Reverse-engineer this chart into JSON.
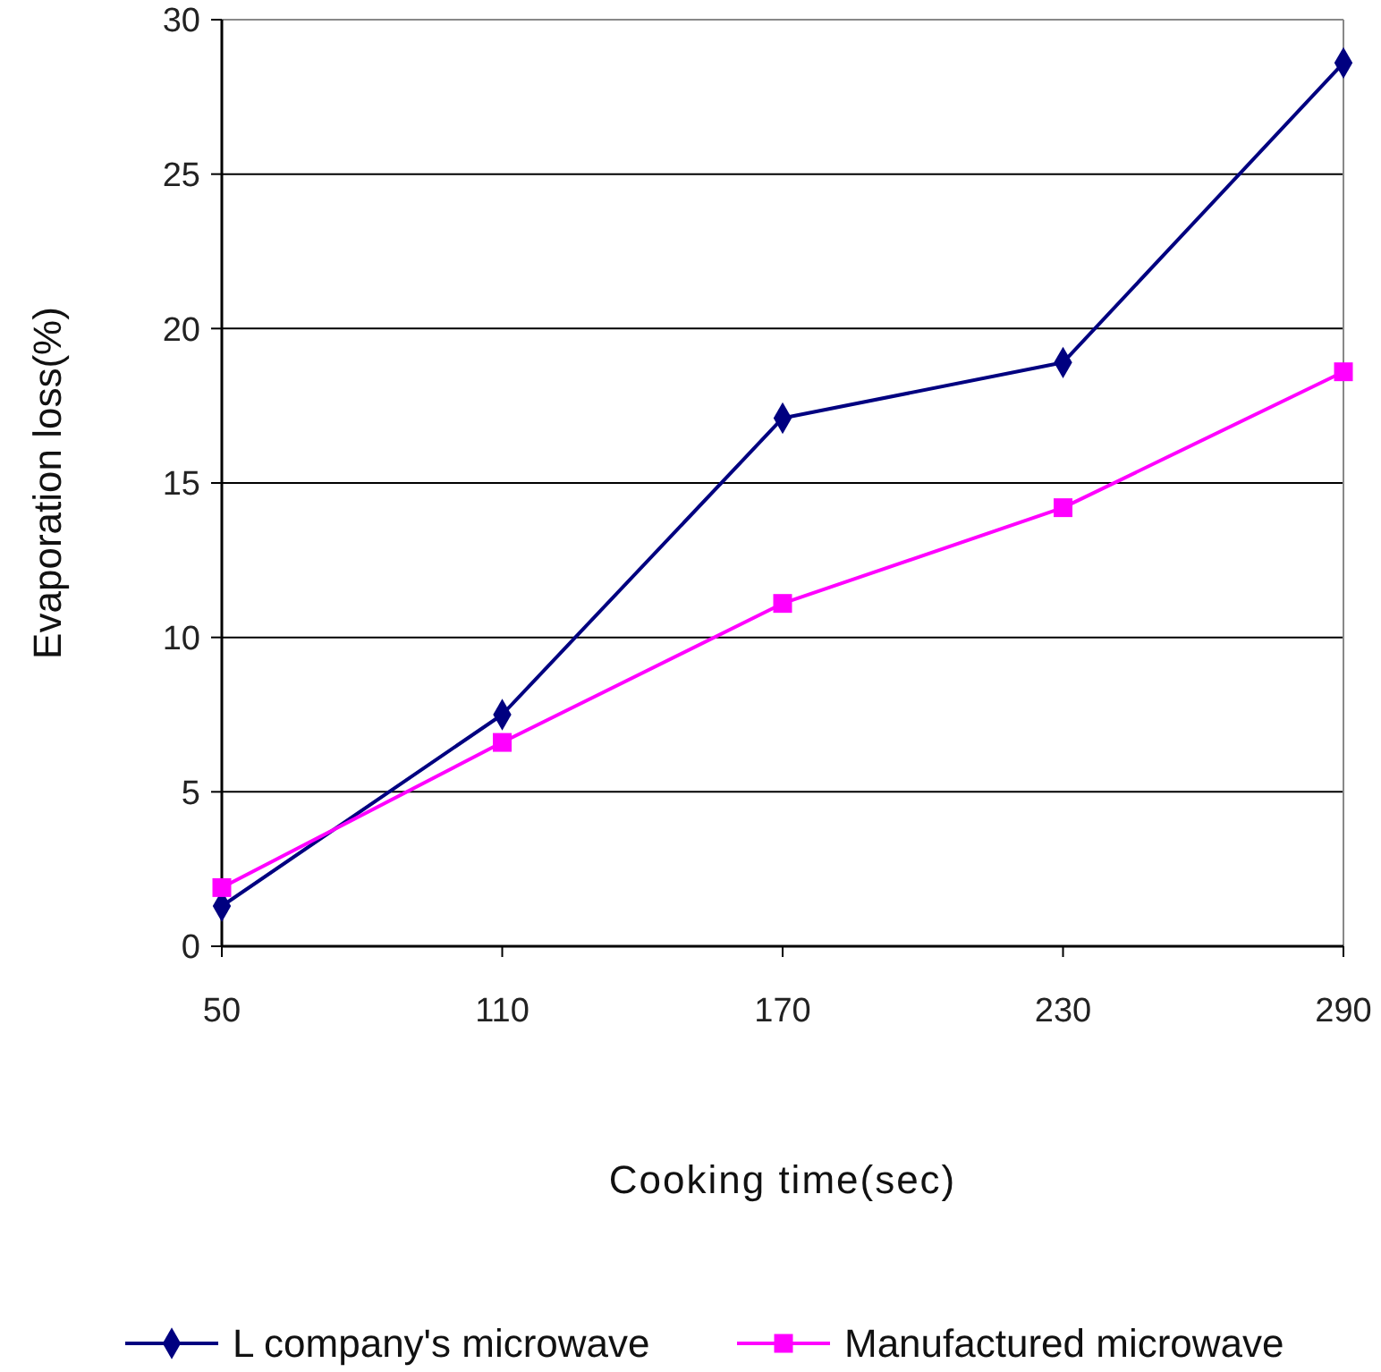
{
  "chart_data": {
    "type": "line",
    "xlabel": "Cooking time(sec)",
    "ylabel": "Evaporation loss(%)",
    "x": [
      50,
      110,
      170,
      230,
      290
    ],
    "xlim": [
      50,
      290
    ],
    "xticks": [
      50,
      110,
      170,
      230,
      290
    ],
    "ylim": [
      0,
      30
    ],
    "yticks": [
      0,
      5,
      10,
      15,
      20,
      25,
      30
    ],
    "grid": "y",
    "legend": "bottom",
    "series": [
      {
        "name": "L company's microwave",
        "color": "#000080",
        "marker": "diamond",
        "values": [
          1.3,
          7.5,
          17.1,
          18.9,
          28.6
        ]
      },
      {
        "name": "Manufactured microwave",
        "color": "#ff00ff",
        "marker": "square",
        "values": [
          1.9,
          6.6,
          11.1,
          14.2,
          18.6
        ]
      }
    ]
  }
}
